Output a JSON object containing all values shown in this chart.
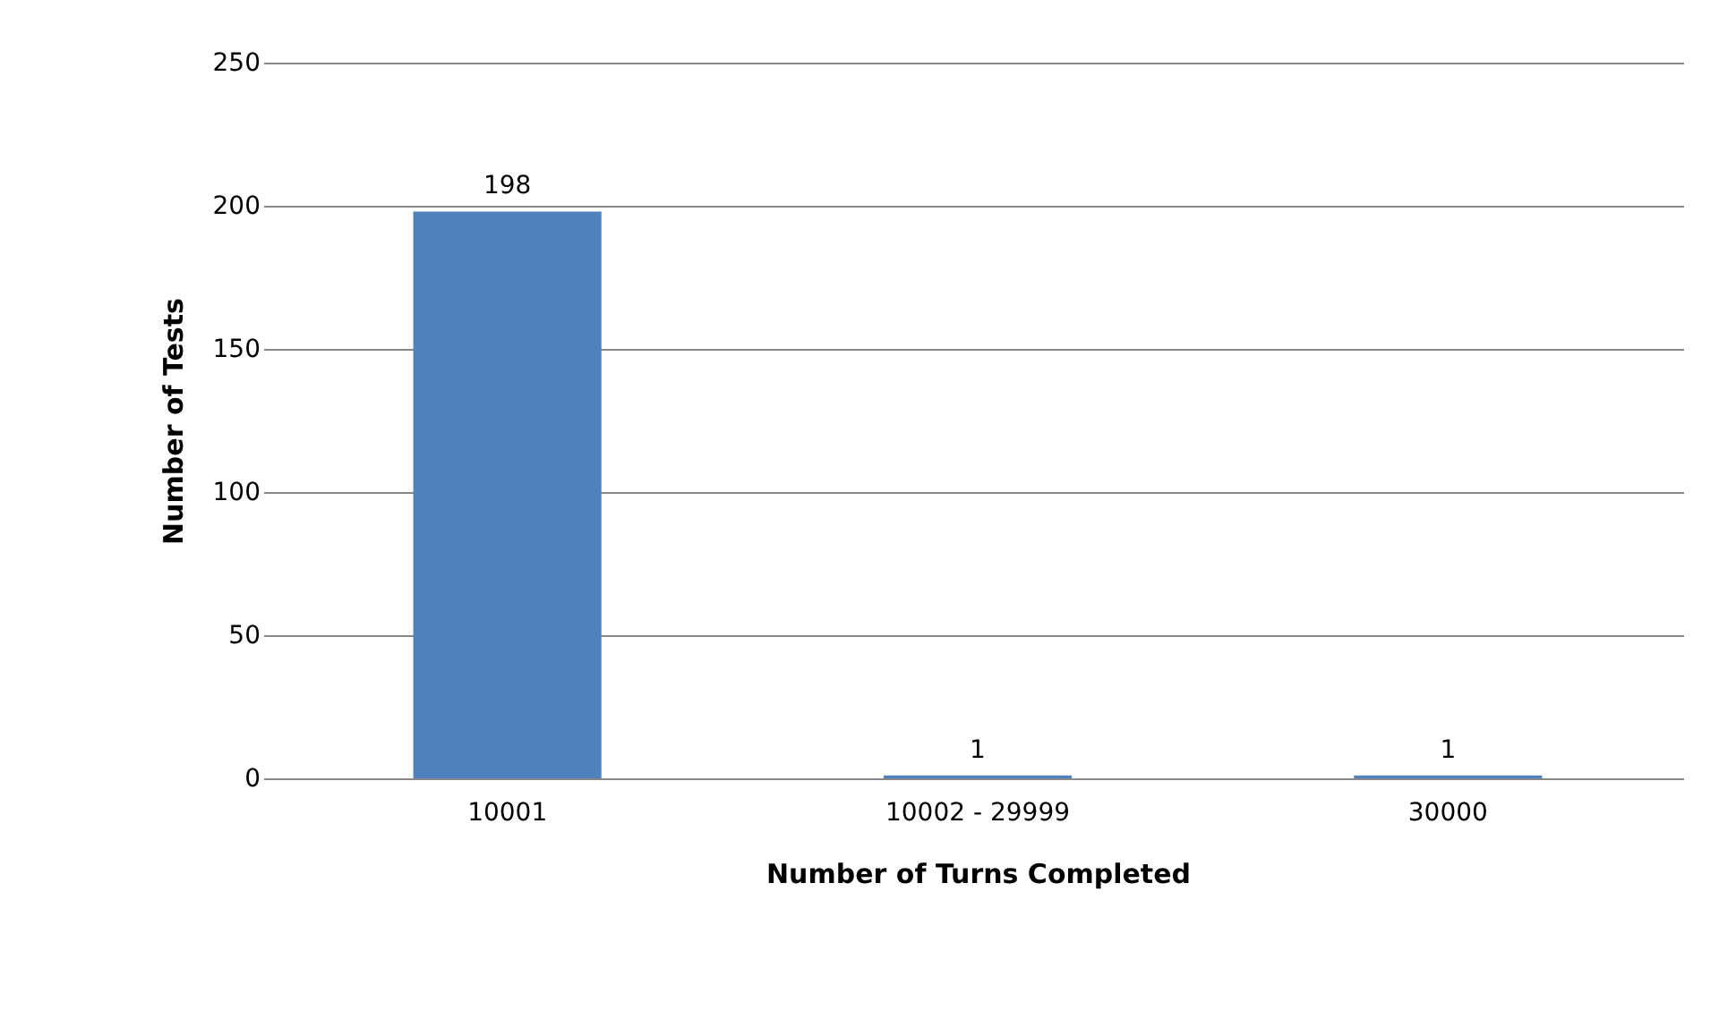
{
  "chart_data": {
    "type": "bar",
    "xlabel": "Number of Turns Completed",
    "ylabel": "Number of Tests",
    "categories": [
      "10001",
      "10002 - 29999",
      "30000"
    ],
    "values": [
      198,
      1,
      1
    ],
    "color": "#4f81bd",
    "ylim": [
      0,
      250
    ],
    "yticks": [
      0,
      50,
      100,
      150,
      200,
      250
    ],
    "grid": "y",
    "data_labels": true
  }
}
